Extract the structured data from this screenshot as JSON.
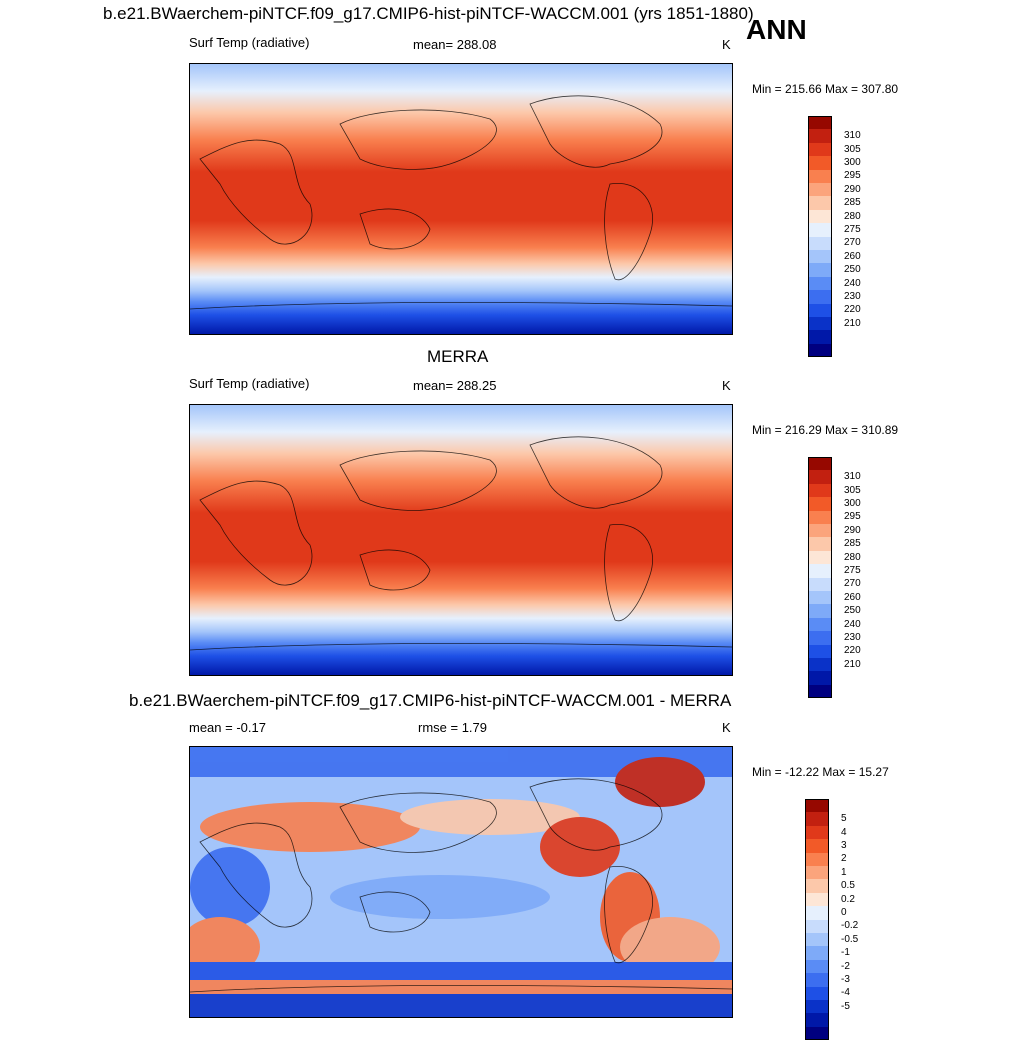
{
  "page": {
    "main_title": "b.e21.BWaerchem-piNTCF.f09_g17.CMIP6-hist-piNTCF-WACCM.001 (yrs 1851-1880)",
    "season": "ANN"
  },
  "panels": [
    {
      "title": "",
      "left_label": "Surf Temp (radiative)",
      "center_label": "mean= 288.08",
      "units": "K",
      "range_text": "Min = 215.66 Max = 307.80",
      "min": 215.66,
      "max": 307.8,
      "kind": "abs"
    },
    {
      "title": "MERRA",
      "left_label": "Surf Temp (radiative)",
      "center_label": "mean= 288.25",
      "units": "K",
      "range_text": "Min = 216.29 Max = 310.89",
      "min": 216.29,
      "max": 310.89,
      "kind": "abs"
    },
    {
      "title": "b.e21.BWaerchem-piNTCF.f09_g17.CMIP6-hist-piNTCF-WACCM.001 - MERRA",
      "left_label": "mean =  -0.17",
      "center_label": "rmse =   1.79",
      "units": "K",
      "range_text": "Min = -12.22 Max =  15.27",
      "min": -12.22,
      "max": 15.27,
      "kind": "diff"
    }
  ],
  "colorbars": {
    "abs": {
      "colors": [
        "#000080",
        "#0018A8",
        "#0a32c8",
        "#1e50e6",
        "#3c6ef0",
        "#5a8cf5",
        "#7eaaf8",
        "#a4c5fa",
        "#c8dcfc",
        "#e6f0fd",
        "#fde6d6",
        "#fcc8aa",
        "#fba47c",
        "#f9804f",
        "#f25a28",
        "#e0391a",
        "#c22010",
        "#960800"
      ],
      "ticks": [
        "210",
        "220",
        "230",
        "240",
        "250",
        "260",
        "270",
        "275",
        "280",
        "285",
        "290",
        "295",
        "300",
        "305",
        "310"
      ]
    },
    "diff": {
      "colors": [
        "#000080",
        "#0018A8",
        "#0a32c8",
        "#1e50e6",
        "#3c6ef0",
        "#5a8cf5",
        "#7eaaf8",
        "#a4c5fa",
        "#c8dcfc",
        "#e6f0fd",
        "#fde6d6",
        "#fcc8aa",
        "#fba47c",
        "#f9804f",
        "#f25a28",
        "#e0391a",
        "#c22010",
        "#960800"
      ],
      "ticks": [
        "-5",
        "-4",
        "-3",
        "-2",
        "-1",
        "-0.5",
        "-0.2",
        "0",
        "0.2",
        "0.5",
        "1",
        "2",
        "3",
        "4",
        "5"
      ]
    }
  }
}
